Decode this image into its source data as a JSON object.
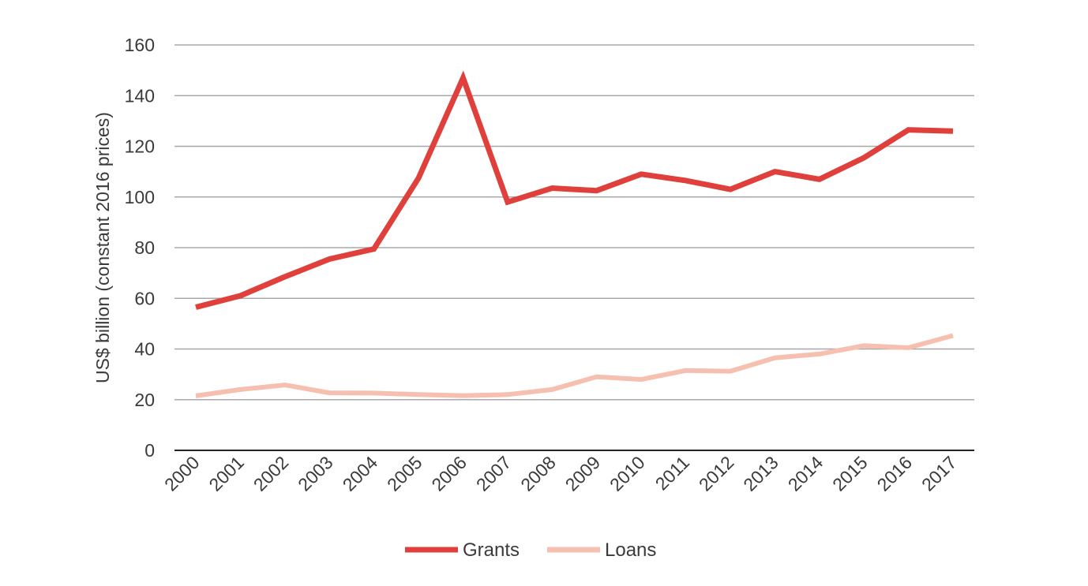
{
  "chart_data": {
    "type": "line",
    "title": "",
    "xlabel": "",
    "ylabel": "US$ billion (constant 2016 prices)",
    "ylim": [
      0,
      160
    ],
    "yticks": [
      0,
      20,
      40,
      60,
      80,
      100,
      120,
      140,
      160
    ],
    "grid": true,
    "legend_position": "bottom",
    "categories": [
      "2000",
      "2001",
      "2002",
      "2003",
      "2004",
      "2005",
      "2006",
      "2007",
      "2008",
      "2009",
      "2010",
      "2011",
      "2012",
      "2013",
      "2014",
      "2015",
      "2016",
      "2017"
    ],
    "series": [
      {
        "name": "Grants",
        "color": "#e0403b",
        "values": [
          56.5,
          61,
          68.5,
          75.5,
          79.5,
          107.5,
          147,
          98,
          103.5,
          102.5,
          109,
          106.5,
          103,
          110,
          107,
          115.5,
          126.5,
          126
        ]
      },
      {
        "name": "Loans",
        "color": "#f6c0b0",
        "values": [
          21.5,
          24,
          25.8,
          22.7,
          22.6,
          22,
          21.6,
          22,
          24,
          29,
          28,
          31.5,
          31.2,
          36.5,
          38,
          41.3,
          40.5,
          45.3
        ]
      }
    ]
  }
}
